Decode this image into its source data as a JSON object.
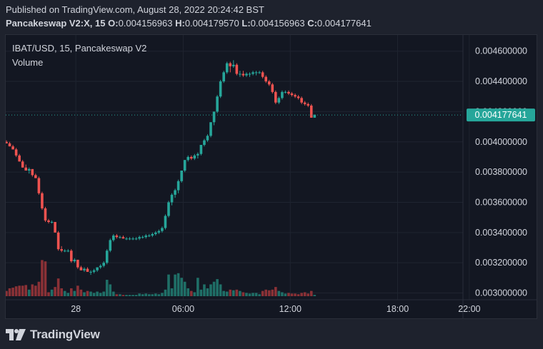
{
  "header": {
    "published": "Published on TradingView.com, August 28, 2022 20:24:42 BST",
    "symbol": "Pancakeswap V2:X, 15",
    "o_label": "O:",
    "o_value": "0.004156963",
    "h_label": "H:",
    "h_value": "0.004179570",
    "l_label": "L:",
    "l_value": "0.004156963",
    "c_label": "C:",
    "c_value": "0.004177641"
  },
  "legend": {
    "title": "IBAT/USD, 15, Pancakeswap V2",
    "volume": "Volume"
  },
  "footer": {
    "brand": "TradingView"
  },
  "colors": {
    "up": "#26a69a",
    "down": "#ef5350",
    "up_volume": "#1f6f67",
    "down_volume": "#8a3136",
    "price_tag": "#26a69a",
    "grid": "#1f2430",
    "text": "#d1d4dc"
  },
  "chart_data": {
    "type": "candlestick",
    "pair": "IBAT/USD",
    "interval": "15",
    "exchange": "Pancakeswap V2",
    "ylim": [
      0.00296,
      0.00466
    ],
    "y_ticks": [
      "0.004600000",
      "0.004400000",
      "0.004200000",
      "0.004000000",
      "0.003800000",
      "0.003600000",
      "0.003400000",
      "0.003200000",
      "0.003000000"
    ],
    "y_tick_values": [
      0.0046,
      0.0044,
      0.0042,
      0.004,
      0.0038,
      0.0036,
      0.0034,
      0.0032,
      0.003
    ],
    "x_ticks": [
      "28",
      "06:00",
      "12:00",
      "18:00",
      "22:00"
    ],
    "x_tick_index": [
      21.4,
      54.5,
      87.5,
      120.6,
      142.7
    ],
    "last_price": 0.004177641,
    "last_price_label": "0.004177641",
    "volume_axis_max": 1.0,
    "candles": [
      [
        0.004,
        0.00401,
        0.00399,
        0.00399,
        0.08
      ],
      [
        0.00399,
        0.004,
        0.00397,
        0.00397,
        0.12
      ],
      [
        0.00397,
        0.00398,
        0.00395,
        0.00395,
        0.13
      ],
      [
        0.00395,
        0.00396,
        0.0039,
        0.00391,
        0.15
      ],
      [
        0.00391,
        0.00392,
        0.00387,
        0.00387,
        0.16
      ],
      [
        0.00387,
        0.00388,
        0.00383,
        0.00383,
        0.16
      ],
      [
        0.00383,
        0.00385,
        0.00381,
        0.00381,
        0.17
      ],
      [
        0.00381,
        0.00383,
        0.00379,
        0.00382,
        0.1
      ],
      [
        0.00382,
        0.00382,
        0.00377,
        0.00378,
        0.18
      ],
      [
        0.00378,
        0.00379,
        0.00376,
        0.00376,
        0.16
      ],
      [
        0.00376,
        0.00377,
        0.00365,
        0.00366,
        0.22
      ],
      [
        0.00366,
        0.00367,
        0.00355,
        0.00356,
        0.55
      ],
      [
        0.00356,
        0.00357,
        0.00347,
        0.00348,
        0.53
      ],
      [
        0.00348,
        0.00349,
        0.00346,
        0.00347,
        0.06
      ],
      [
        0.00347,
        0.00348,
        0.00346,
        0.00347,
        0.1
      ],
      [
        0.00347,
        0.00347,
        0.0034,
        0.0034,
        0.14
      ],
      [
        0.0034,
        0.00341,
        0.00328,
        0.00329,
        0.27
      ],
      [
        0.00329,
        0.00331,
        0.00327,
        0.00328,
        0.12
      ],
      [
        0.00328,
        0.00329,
        0.00327,
        0.00328,
        0.08
      ],
      [
        0.00328,
        0.00329,
        0.00327,
        0.00328,
        0.05
      ],
      [
        0.00328,
        0.00329,
        0.0032,
        0.00321,
        0.12
      ],
      [
        0.00321,
        0.00323,
        0.0032,
        0.00322,
        0.08
      ],
      [
        0.00322,
        0.00322,
        0.00316,
        0.00317,
        0.16
      ],
      [
        0.00317,
        0.00318,
        0.00315,
        0.00315,
        0.1
      ],
      [
        0.00315,
        0.00317,
        0.00314,
        0.00316,
        0.06
      ],
      [
        0.00316,
        0.00317,
        0.00314,
        0.00314,
        0.08
      ],
      [
        0.00314,
        0.00315,
        0.00312,
        0.00314,
        0.07
      ],
      [
        0.00314,
        0.00316,
        0.00313,
        0.00315,
        0.05
      ],
      [
        0.00315,
        0.00317,
        0.00314,
        0.00317,
        0.07
      ],
      [
        0.00317,
        0.00319,
        0.00316,
        0.00318,
        0.05
      ],
      [
        0.00318,
        0.00321,
        0.00317,
        0.0032,
        0.07
      ],
      [
        0.0032,
        0.00329,
        0.00319,
        0.00328,
        0.25
      ],
      [
        0.00328,
        0.00336,
        0.00327,
        0.00335,
        0.18
      ],
      [
        0.00335,
        0.00339,
        0.00334,
        0.00338,
        0.07
      ],
      [
        0.00338,
        0.00339,
        0.00336,
        0.00337,
        0.03
      ],
      [
        0.00337,
        0.00338,
        0.00336,
        0.00337,
        0.03
      ],
      [
        0.00337,
        0.00338,
        0.00336,
        0.00336,
        0.02
      ],
      [
        0.00336,
        0.00337,
        0.00335,
        0.00336,
        0.02
      ],
      [
        0.00336,
        0.00337,
        0.00335,
        0.00336,
        0.02
      ],
      [
        0.00336,
        0.00337,
        0.00335,
        0.00336,
        0.02
      ],
      [
        0.00336,
        0.00337,
        0.00335,
        0.00336,
        0.02
      ],
      [
        0.00336,
        0.00338,
        0.00335,
        0.00337,
        0.04
      ],
      [
        0.00337,
        0.00338,
        0.00336,
        0.00337,
        0.03
      ],
      [
        0.00337,
        0.00339,
        0.00336,
        0.00338,
        0.04
      ],
      [
        0.00338,
        0.00339,
        0.00337,
        0.00338,
        0.03
      ],
      [
        0.00338,
        0.0034,
        0.00337,
        0.00339,
        0.03
      ],
      [
        0.00339,
        0.00341,
        0.00338,
        0.0034,
        0.04
      ],
      [
        0.0034,
        0.00342,
        0.00339,
        0.00341,
        0.03
      ],
      [
        0.00341,
        0.00344,
        0.0034,
        0.00343,
        0.05
      ],
      [
        0.00343,
        0.00352,
        0.00342,
        0.00351,
        0.1
      ],
      [
        0.00351,
        0.00361,
        0.0035,
        0.0036,
        0.33
      ],
      [
        0.0036,
        0.00366,
        0.00358,
        0.00365,
        0.12
      ],
      [
        0.00365,
        0.00369,
        0.00363,
        0.00368,
        0.33
      ],
      [
        0.00368,
        0.00375,
        0.00366,
        0.00374,
        0.35
      ],
      [
        0.00374,
        0.00381,
        0.00373,
        0.00381,
        0.28
      ],
      [
        0.00381,
        0.00388,
        0.0038,
        0.00388,
        0.22
      ],
      [
        0.00388,
        0.00391,
        0.00387,
        0.0039,
        0.12
      ],
      [
        0.0039,
        0.00391,
        0.00388,
        0.00389,
        0.08
      ],
      [
        0.00389,
        0.00392,
        0.00388,
        0.00391,
        0.06
      ],
      [
        0.00391,
        0.00393,
        0.00389,
        0.00392,
        0.28
      ],
      [
        0.00392,
        0.00398,
        0.00391,
        0.00398,
        0.1
      ],
      [
        0.00398,
        0.00402,
        0.00397,
        0.00401,
        0.18
      ],
      [
        0.00401,
        0.00405,
        0.004,
        0.00404,
        0.12
      ],
      [
        0.00404,
        0.00413,
        0.00403,
        0.00413,
        0.18
      ],
      [
        0.00413,
        0.0042,
        0.00411,
        0.0042,
        0.22
      ],
      [
        0.0042,
        0.00431,
        0.00419,
        0.0043,
        0.26
      ],
      [
        0.0043,
        0.00441,
        0.00429,
        0.0044,
        0.18
      ],
      [
        0.0044,
        0.00447,
        0.00439,
        0.00446,
        0.08
      ],
      [
        0.00446,
        0.00453,
        0.00445,
        0.00452,
        0.07
      ],
      [
        0.00452,
        0.00453,
        0.00446,
        0.0045,
        0.1
      ],
      [
        0.0045,
        0.00454,
        0.00449,
        0.00451,
        0.09
      ],
      [
        0.00451,
        0.00452,
        0.00444,
        0.00445,
        0.1
      ],
      [
        0.00445,
        0.00447,
        0.00443,
        0.00445,
        0.08
      ],
      [
        0.00445,
        0.00447,
        0.00443,
        0.00444,
        0.06
      ],
      [
        0.00444,
        0.00446,
        0.00443,
        0.00445,
        0.05
      ],
      [
        0.00445,
        0.00446,
        0.00443,
        0.00445,
        0.04
      ],
      [
        0.00445,
        0.00447,
        0.00444,
        0.00446,
        0.05
      ],
      [
        0.00446,
        0.00447,
        0.00444,
        0.00446,
        0.05
      ],
      [
        0.00446,
        0.00447,
        0.00445,
        0.00446,
        0.03
      ],
      [
        0.00446,
        0.00447,
        0.00442,
        0.00443,
        0.08
      ],
      [
        0.00443,
        0.00444,
        0.00439,
        0.0044,
        0.1
      ],
      [
        0.0044,
        0.00441,
        0.00437,
        0.00438,
        0.09
      ],
      [
        0.00438,
        0.00439,
        0.00432,
        0.00433,
        0.1
      ],
      [
        0.00433,
        0.00434,
        0.00425,
        0.00426,
        0.14
      ],
      [
        0.00426,
        0.0043,
        0.00425,
        0.00429,
        0.08
      ],
      [
        0.00429,
        0.00434,
        0.00428,
        0.00433,
        0.06
      ],
      [
        0.00433,
        0.00434,
        0.00432,
        0.00433,
        0.04
      ],
      [
        0.00433,
        0.00434,
        0.00431,
        0.00432,
        0.05
      ],
      [
        0.00432,
        0.00433,
        0.0043,
        0.00431,
        0.04
      ],
      [
        0.00431,
        0.00432,
        0.00429,
        0.0043,
        0.04
      ],
      [
        0.0043,
        0.00431,
        0.00428,
        0.00429,
        0.03
      ],
      [
        0.00429,
        0.0043,
        0.00425,
        0.00426,
        0.05
      ],
      [
        0.00426,
        0.00427,
        0.00424,
        0.00425,
        0.06
      ],
      [
        0.00425,
        0.00426,
        0.00423,
        0.00424,
        0.04
      ],
      [
        0.00424,
        0.00425,
        0.00416,
        0.00416,
        0.08
      ],
      [
        0.00416,
        0.00418,
        0.00416,
        0.00418,
        0.02
      ]
    ]
  }
}
